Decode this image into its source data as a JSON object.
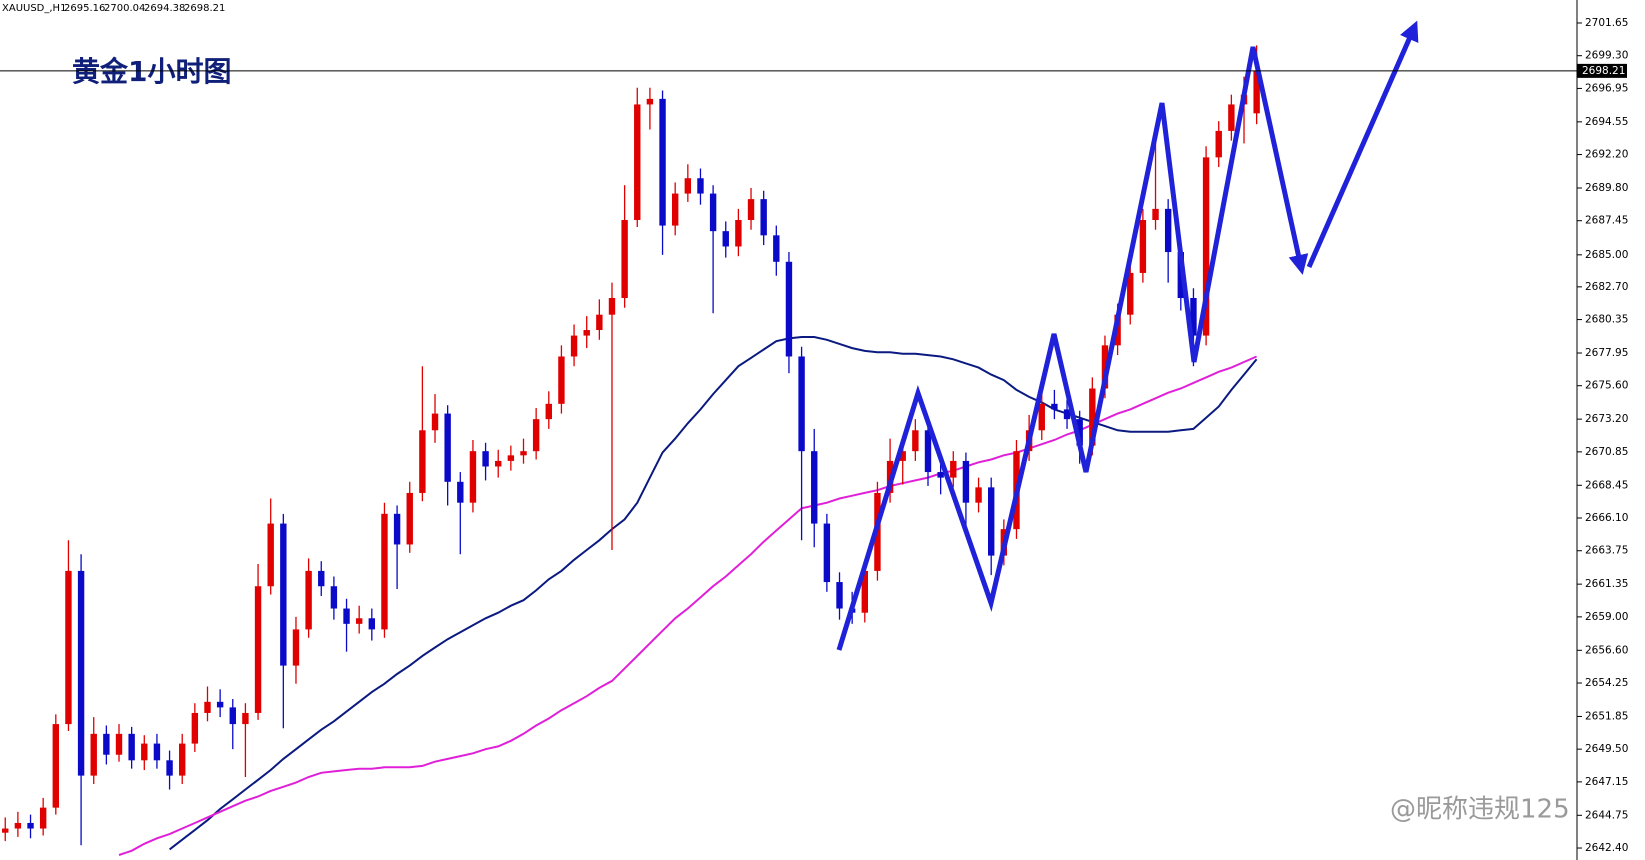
{
  "header": {
    "symbol": "XAUUSD_,H1"
  },
  "chart_data": {
    "type": "candlestick",
    "title": "黄金1小时图",
    "up_color": "#e00000",
    "down_color": "#0a0ac8",
    "candles": [
      [
        2643.5,
        2644.6,
        2642.9,
        2643.8
      ],
      [
        2643.8,
        2645.0,
        2643.2,
        2644.2
      ],
      [
        2644.2,
        2644.8,
        2643.1,
        2643.8
      ],
      [
        2643.8,
        2646.0,
        2643.3,
        2645.3
      ],
      [
        2645.3,
        2652.0,
        2644.8,
        2651.3
      ],
      [
        2651.3,
        2664.5,
        2650.8,
        2662.3
      ],
      [
        2662.3,
        2663.5,
        2642.6,
        2647.6
      ],
      [
        2647.6,
        2651.8,
        2647.0,
        2650.6
      ],
      [
        2650.6,
        2651.2,
        2648.4,
        2649.1
      ],
      [
        2649.1,
        2651.3,
        2648.6,
        2650.6
      ],
      [
        2650.6,
        2651.1,
        2648.1,
        2648.7
      ],
      [
        2648.7,
        2650.5,
        2648.0,
        2649.9
      ],
      [
        2649.9,
        2650.6,
        2648.1,
        2648.7
      ],
      [
        2648.7,
        2649.4,
        2646.6,
        2647.6
      ],
      [
        2647.6,
        2650.6,
        2647.0,
        2649.9
      ],
      [
        2649.9,
        2652.8,
        2649.3,
        2652.1
      ],
      [
        2652.1,
        2654.0,
        2651.5,
        2652.9
      ],
      [
        2652.9,
        2653.8,
        2651.8,
        2652.5
      ],
      [
        2652.5,
        2653.1,
        2649.5,
        2651.3
      ],
      [
        2651.3,
        2652.8,
        2647.5,
        2652.1
      ],
      [
        2652.1,
        2662.8,
        2651.6,
        2661.2
      ],
      [
        2661.2,
        2667.5,
        2660.6,
        2665.7
      ],
      [
        2665.7,
        2666.4,
        2651.0,
        2655.5
      ],
      [
        2655.5,
        2659.0,
        2654.2,
        2658.1
      ],
      [
        2658.1,
        2663.2,
        2657.5,
        2662.3
      ],
      [
        2662.3,
        2663.0,
        2660.5,
        2661.2
      ],
      [
        2661.2,
        2661.9,
        2658.8,
        2659.6
      ],
      [
        2659.6,
        2660.3,
        2656.5,
        2658.5
      ],
      [
        2658.5,
        2659.8,
        2657.8,
        2658.9
      ],
      [
        2658.9,
        2659.6,
        2657.3,
        2658.1
      ],
      [
        2658.1,
        2667.2,
        2657.5,
        2666.4
      ],
      [
        2666.4,
        2667.0,
        2661.0,
        2664.2
      ],
      [
        2664.2,
        2668.7,
        2663.6,
        2667.9
      ],
      [
        2667.9,
        2677.0,
        2667.3,
        2672.4
      ],
      [
        2672.4,
        2675.0,
        2671.5,
        2673.6
      ],
      [
        2673.6,
        2674.2,
        2667.0,
        2668.7
      ],
      [
        2668.7,
        2669.4,
        2663.5,
        2667.2
      ],
      [
        2667.2,
        2671.7,
        2666.5,
        2670.9
      ],
      [
        2670.9,
        2671.5,
        2668.8,
        2669.8
      ],
      [
        2669.8,
        2671.0,
        2669.0,
        2670.2
      ],
      [
        2670.2,
        2671.3,
        2669.5,
        2670.6
      ],
      [
        2670.6,
        2671.8,
        2670.0,
        2670.9
      ],
      [
        2670.9,
        2674.0,
        2670.3,
        2673.2
      ],
      [
        2673.2,
        2675.2,
        2672.5,
        2674.3
      ],
      [
        2674.3,
        2678.5,
        2673.6,
        2677.7
      ],
      [
        2677.7,
        2680.0,
        2677.0,
        2679.2
      ],
      [
        2679.2,
        2680.6,
        2678.3,
        2679.6
      ],
      [
        2679.6,
        2681.8,
        2678.9,
        2680.7
      ],
      [
        2680.7,
        2683.0,
        2663.8,
        2681.9
      ],
      [
        2681.9,
        2690.0,
        2681.2,
        2687.5
      ],
      [
        2687.5,
        2697.0,
        2687.0,
        2695.8
      ],
      [
        2695.8,
        2697.0,
        2694.0,
        2696.2
      ],
      [
        2696.2,
        2696.8,
        2685.0,
        2687.1
      ],
      [
        2687.1,
        2690.2,
        2686.4,
        2689.4
      ],
      [
        2689.4,
        2691.5,
        2688.8,
        2690.5
      ],
      [
        2690.5,
        2691.2,
        2688.6,
        2689.4
      ],
      [
        2689.4,
        2690.0,
        2680.8,
        2686.7
      ],
      [
        2686.7,
        2687.4,
        2684.8,
        2685.6
      ],
      [
        2685.6,
        2688.3,
        2684.9,
        2687.5
      ],
      [
        2687.5,
        2689.8,
        2686.8,
        2689.0
      ],
      [
        2689.0,
        2689.6,
        2685.7,
        2686.4
      ],
      [
        2686.4,
        2687.1,
        2683.5,
        2684.5
      ],
      [
        2684.5,
        2685.2,
        2676.5,
        2677.7
      ],
      [
        2677.7,
        2678.4,
        2664.5,
        2670.9
      ],
      [
        2670.9,
        2672.5,
        2664.0,
        2665.7
      ],
      [
        2665.7,
        2666.4,
        2660.8,
        2661.5
      ],
      [
        2661.5,
        2662.2,
        2658.8,
        2659.6
      ],
      [
        2659.6,
        2660.8,
        2658.5,
        2659.3
      ],
      [
        2659.3,
        2663.1,
        2658.6,
        2662.3
      ],
      [
        2662.3,
        2668.7,
        2661.6,
        2667.9
      ],
      [
        2667.9,
        2671.8,
        2667.2,
        2670.2
      ],
      [
        2670.2,
        2671.6,
        2668.5,
        2670.9
      ],
      [
        2670.9,
        2673.2,
        2670.2,
        2672.4
      ],
      [
        2672.4,
        2673.0,
        2668.4,
        2669.4
      ],
      [
        2669.4,
        2670.1,
        2667.8,
        2669.0
      ],
      [
        2669.0,
        2670.9,
        2668.3,
        2670.2
      ],
      [
        2670.2,
        2670.8,
        2665.5,
        2667.2
      ],
      [
        2667.2,
        2669.0,
        2666.5,
        2668.3
      ],
      [
        2668.3,
        2669.0,
        2662.0,
        2663.4
      ],
      [
        2663.4,
        2666.0,
        2662.7,
        2665.3
      ],
      [
        2665.3,
        2671.7,
        2664.6,
        2670.9
      ],
      [
        2670.9,
        2673.5,
        2670.2,
        2672.4
      ],
      [
        2672.4,
        2675.0,
        2671.7,
        2674.3
      ],
      [
        2674.3,
        2675.3,
        2673.2,
        2673.9
      ],
      [
        2673.9,
        2674.6,
        2672.5,
        2673.2
      ],
      [
        2673.2,
        2673.8,
        2670.0,
        2671.3
      ],
      [
        2671.3,
        2676.2,
        2670.6,
        2675.4
      ],
      [
        2675.4,
        2679.2,
        2674.7,
        2678.5
      ],
      [
        2678.5,
        2681.5,
        2677.8,
        2680.7
      ],
      [
        2680.7,
        2684.5,
        2680.0,
        2683.7
      ],
      [
        2683.7,
        2688.3,
        2683.0,
        2687.5
      ],
      [
        2687.5,
        2694.0,
        2686.8,
        2688.3
      ],
      [
        2688.3,
        2689.0,
        2683.0,
        2685.2
      ],
      [
        2685.2,
        2685.9,
        2681.0,
        2681.9
      ],
      [
        2681.9,
        2682.6,
        2677.0,
        2679.2
      ],
      [
        2679.2,
        2692.8,
        2678.5,
        2692.0
      ],
      [
        2692.0,
        2694.6,
        2691.3,
        2693.9
      ],
      [
        2693.9,
        2696.5,
        2693.2,
        2695.8
      ],
      [
        2695.8,
        2697.8,
        2693.0,
        2696.5
      ],
      [
        2695.16,
        2700.04,
        2694.38,
        2698.21
      ]
    ],
    "series": [
      {
        "color": "#0b1a80",
        "values": [
          null,
          null,
          null,
          null,
          null,
          null,
          null,
          null,
          null,
          null,
          null,
          null,
          null,
          2642.3,
          2643.0,
          2643.7,
          2644.4,
          2645.2,
          2645.9,
          2646.6,
          2647.3,
          2648.0,
          2648.8,
          2649.5,
          2650.2,
          2650.9,
          2651.5,
          2652.2,
          2652.9,
          2653.6,
          2654.2,
          2654.9,
          2655.5,
          2656.2,
          2656.8,
          2657.4,
          2657.9,
          2658.4,
          2658.9,
          2659.3,
          2659.8,
          2660.2,
          2660.9,
          2661.7,
          2662.3,
          2663.1,
          2663.8,
          2664.5,
          2665.3,
          2666.0,
          2667.2,
          2669.0,
          2670.8,
          2671.8,
          2672.9,
          2673.9,
          2675.0,
          2676.0,
          2677.0,
          2677.6,
          2678.2,
          2678.8,
          2679.0,
          2679.1,
          2679.1,
          2678.9,
          2678.6,
          2678.3,
          2678.1,
          2678.0,
          2678.0,
          2677.9,
          2677.9,
          2677.8,
          2677.7,
          2677.5,
          2677.2,
          2676.9,
          2676.4,
          2676.0,
          2675.3,
          2674.8,
          2674.4,
          2673.9,
          2673.6,
          2673.3,
          2673.0,
          2672.7,
          2672.4,
          2672.3,
          2672.3,
          2672.3,
          2672.3,
          2672.4,
          2672.5,
          2673.3,
          2674.1,
          2675.3,
          2676.4,
          2677.5
        ]
      },
      {
        "color": "#e020d8",
        "values": [
          null,
          null,
          null,
          null,
          null,
          null,
          null,
          null,
          null,
          2641.9,
          2642.2,
          2642.7,
          2643.1,
          2643.4,
          2643.8,
          2644.2,
          2644.6,
          2645.0,
          2645.4,
          2645.8,
          2646.1,
          2646.5,
          2646.8,
          2647.1,
          2647.5,
          2647.8,
          2647.9,
          2648.0,
          2648.1,
          2648.1,
          2648.2,
          2648.2,
          2648.2,
          2648.3,
          2648.6,
          2648.8,
          2649.0,
          2649.2,
          2649.5,
          2649.7,
          2650.1,
          2650.6,
          2651.2,
          2651.7,
          2652.3,
          2652.8,
          2653.3,
          2653.9,
          2654.4,
          2655.3,
          2656.2,
          2657.1,
          2658.0,
          2658.9,
          2659.6,
          2660.4,
          2661.2,
          2661.9,
          2662.7,
          2663.5,
          2664.4,
          2665.2,
          2666.0,
          2666.8,
          2667.0,
          2667.2,
          2667.5,
          2667.7,
          2667.9,
          2668.1,
          2668.4,
          2668.6,
          2668.8,
          2669.0,
          2669.3,
          2669.5,
          2669.8,
          2670.1,
          2670.3,
          2670.6,
          2670.8,
          2671.1,
          2671.4,
          2671.7,
          2672.1,
          2672.4,
          2672.8,
          2673.2,
          2673.6,
          2673.9,
          2674.3,
          2674.7,
          2675.1,
          2675.4,
          2675.8,
          2676.2,
          2676.6,
          2676.9,
          2677.3,
          2677.7
        ]
      }
    ],
    "ylim": [
      2641.54,
      2703.3
    ],
    "yticks": [
      2701.65,
      {
        "value": 2699.3,
        "label": "2699.30"
      },
      2696.95,
      2694.55,
      {
        "value": 2692.2,
        "label": "2692.20"
      },
      {
        "value": 2689.8,
        "label": "2689.80"
      },
      2687.45,
      {
        "value": 2685,
        "label": "2685.00"
      },
      {
        "value": 2682.7,
        "label": "2682.70"
      },
      2680.35,
      2677.95,
      {
        "value": 2675.6,
        "label": "2675.60"
      },
      {
        "value": 2673.2,
        "label": "2673.20"
      },
      2670.85,
      2668.45,
      {
        "value": 2666.1,
        "label": "2666.10"
      },
      2663.75,
      2661.35,
      {
        "value": 2659,
        "label": "2659.00"
      },
      {
        "value": 2656.6,
        "label": "2656.60"
      },
      2654.25,
      2651.85,
      {
        "value": 2649.5,
        "label": "2649.50"
      },
      2647.15,
      2644.75,
      {
        "value": 2642.4,
        "label": "2642.40"
      }
    ]
  },
  "watermark": "@昵称违规125"
}
